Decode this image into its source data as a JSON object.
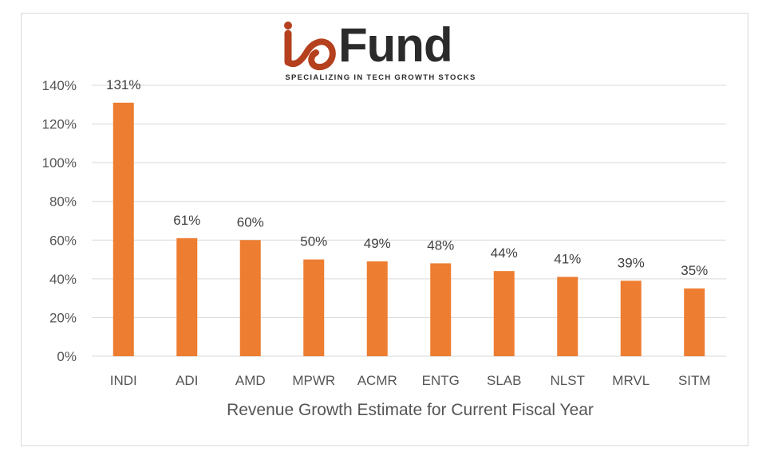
{
  "logo": {
    "name": "ioFund",
    "word": "Fund",
    "tagline": "SPECIALIZING IN TECH GROWTH STOCKS",
    "mark_color": "#b5401e",
    "text_color": "#2b2b2b"
  },
  "chart_data": {
    "type": "bar",
    "title": "",
    "xlabel": "Revenue Growth Estimate for Current Fiscal Year",
    "ylabel": "",
    "categories": [
      "INDI",
      "ADI",
      "AMD",
      "MPWR",
      "ACMR",
      "ENTG",
      "SLAB",
      "NLST",
      "MRVL",
      "SITM"
    ],
    "values": [
      131,
      61,
      60,
      50,
      49,
      48,
      44,
      41,
      39,
      35
    ],
    "data_labels": [
      "131%",
      "61%",
      "60%",
      "50%",
      "49%",
      "48%",
      "44%",
      "41%",
      "39%",
      "35%"
    ],
    "ylim": [
      0,
      140
    ],
    "yticks": [
      0,
      20,
      40,
      60,
      80,
      100,
      120,
      140
    ],
    "ytick_labels": [
      "0%",
      "20%",
      "40%",
      "60%",
      "80%",
      "100%",
      "120%",
      "140%"
    ],
    "grid": true,
    "legend": "none",
    "bar_color": "#ed7d31",
    "grid_color": "#d9d9d9"
  }
}
